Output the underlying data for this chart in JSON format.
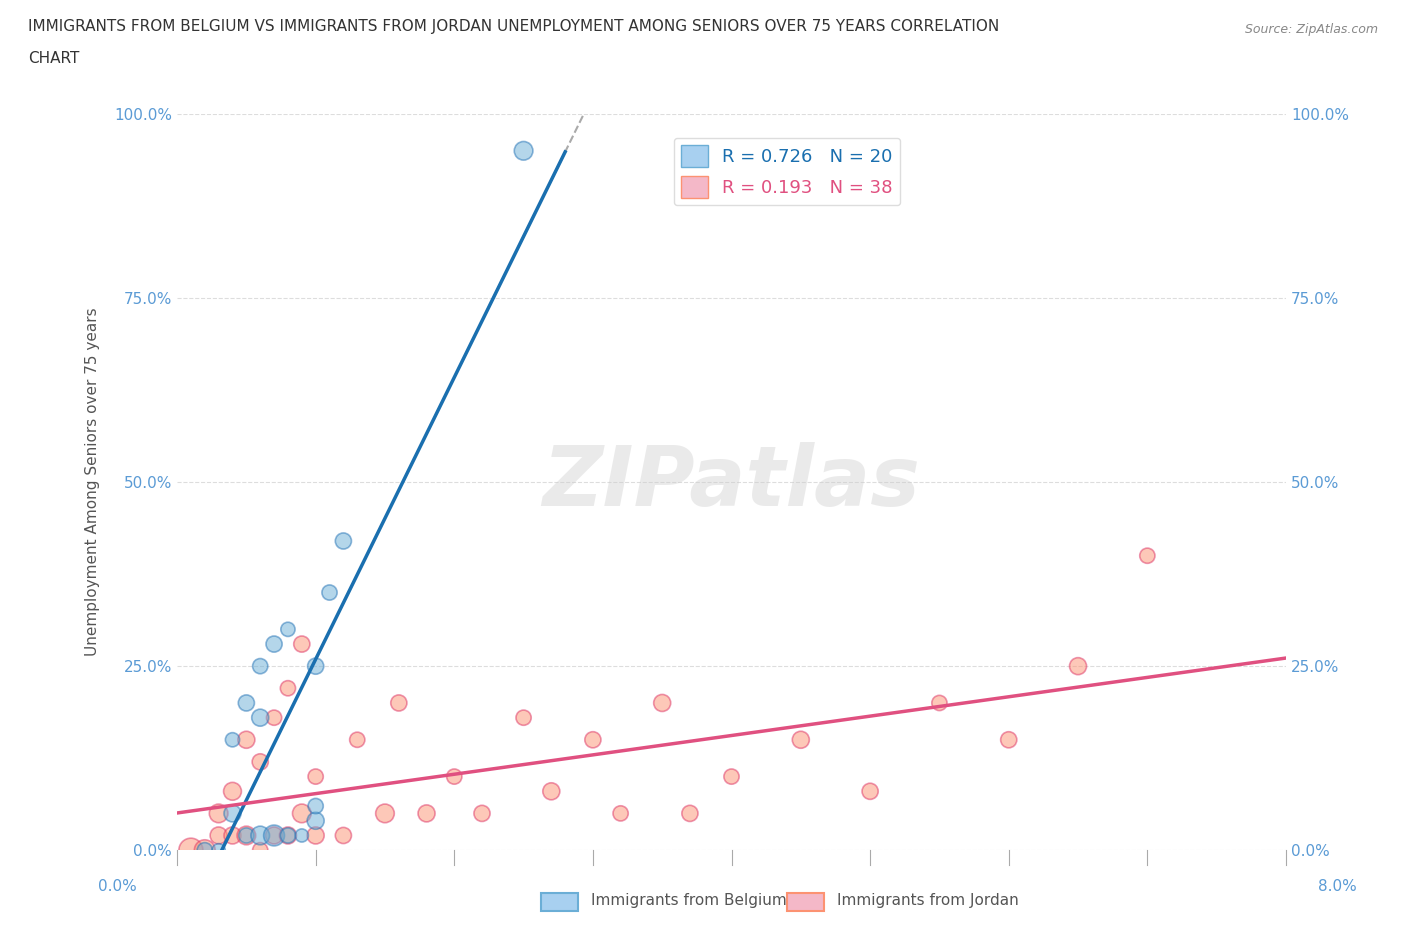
{
  "title_line1": "IMMIGRANTS FROM BELGIUM VS IMMIGRANTS FROM JORDAN UNEMPLOYMENT AMONG SENIORS OVER 75 YEARS CORRELATION",
  "title_line2": "CHART",
  "source": "Source: ZipAtlas.com",
  "ylabel": "Unemployment Among Seniors over 75 years",
  "y_ticks": [
    0.0,
    0.25,
    0.5,
    0.75,
    1.0
  ],
  "y_tick_labels": [
    "0.0%",
    "25.0%",
    "50.0%",
    "75.0%",
    "100.0%"
  ],
  "xlim": [
    0.0,
    0.08
  ],
  "ylim": [
    0.0,
    1.0
  ],
  "belgium_R": 0.726,
  "belgium_N": 20,
  "jordan_R": 0.193,
  "jordan_N": 38,
  "belgium_color": "#6baed6",
  "jordan_color": "#fc9272",
  "belgium_edge_color": "#2171b5",
  "jordan_edge_color": "#de3163",
  "belgium_trend_color": "#1a6faf",
  "jordan_trend_color": "#e05080",
  "watermark": "ZIPatlas",
  "watermark_color": "#cccccc",
  "background_color": "#ffffff",
  "legend_belgium": "Immigrants from Belgium",
  "legend_jordan": "Immigrants from Jordan",
  "belgium_scatter_x": [
    0.002,
    0.003,
    0.004,
    0.004,
    0.005,
    0.005,
    0.006,
    0.006,
    0.006,
    0.007,
    0.007,
    0.008,
    0.008,
    0.009,
    0.01,
    0.01,
    0.01,
    0.011,
    0.012,
    0.025
  ],
  "belgium_scatter_y": [
    0.0,
    0.0,
    0.05,
    0.15,
    0.02,
    0.2,
    0.02,
    0.18,
    0.25,
    0.02,
    0.28,
    0.02,
    0.3,
    0.02,
    0.04,
    0.06,
    0.25,
    0.35,
    0.42,
    0.95
  ],
  "belgium_scatter_sizes": [
    80,
    60,
    100,
    70,
    80,
    90,
    120,
    100,
    80,
    150,
    90,
    80,
    70,
    60,
    100,
    80,
    90,
    80,
    90,
    120
  ],
  "jordan_scatter_x": [
    0.001,
    0.002,
    0.003,
    0.003,
    0.004,
    0.004,
    0.005,
    0.005,
    0.006,
    0.006,
    0.007,
    0.007,
    0.008,
    0.008,
    0.009,
    0.009,
    0.01,
    0.01,
    0.012,
    0.013,
    0.015,
    0.016,
    0.018,
    0.02,
    0.022,
    0.025,
    0.027,
    0.03,
    0.032,
    0.035,
    0.037,
    0.04,
    0.045,
    0.05,
    0.055,
    0.06,
    0.065,
    0.07
  ],
  "jordan_scatter_y": [
    0.0,
    0.0,
    0.02,
    0.05,
    0.02,
    0.08,
    0.02,
    0.15,
    0.0,
    0.12,
    0.02,
    0.18,
    0.02,
    0.22,
    0.05,
    0.28,
    0.02,
    0.1,
    0.02,
    0.15,
    0.05,
    0.2,
    0.05,
    0.1,
    0.05,
    0.18,
    0.08,
    0.15,
    0.05,
    0.2,
    0.05,
    0.1,
    0.15,
    0.08,
    0.2,
    0.15,
    0.25,
    0.4
  ],
  "jordan_scatter_sizes": [
    200,
    150,
    100,
    120,
    100,
    110,
    120,
    100,
    80,
    90,
    100,
    80,
    100,
    80,
    120,
    90,
    100,
    80,
    90,
    80,
    120,
    90,
    100,
    80,
    90,
    80,
    100,
    90,
    80,
    100,
    90,
    80,
    100,
    90,
    80,
    90,
    100,
    80
  ],
  "tick_color": "#5b9bd5",
  "axis_label_color": "#555555"
}
